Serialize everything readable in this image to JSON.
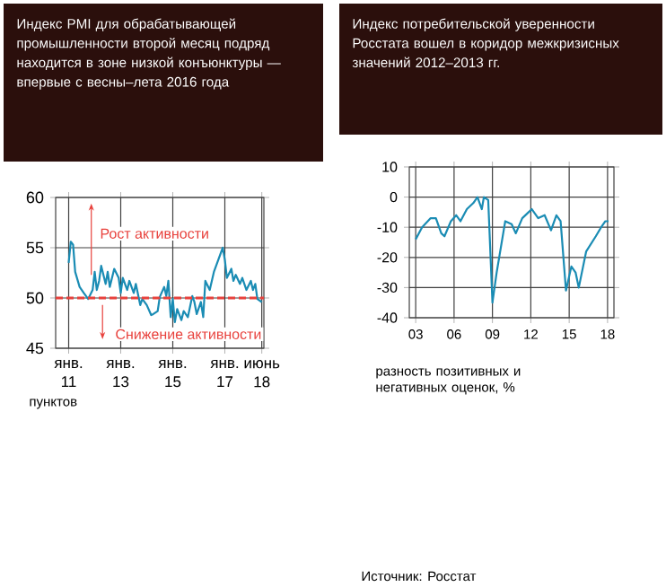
{
  "chart_data": [
    {
      "type": "line",
      "title": "Индекс PMI для обрабатывающей промышленности второй месяц подряд находится в зоне низкой конъюнктуры — впервые с весны–лета 2016 года",
      "ylabel": "пунктов",
      "x": [
        "2011-01",
        "2011-02",
        "2011-03",
        "2011-04",
        "2011-06",
        "2011-08",
        "2011-10",
        "2011-12",
        "2012-01",
        "2012-02",
        "2012-03",
        "2012-04",
        "2012-06",
        "2012-07",
        "2012-08",
        "2012-10",
        "2012-12",
        "2013-01",
        "2013-02",
        "2013-04",
        "2013-05",
        "2013-07",
        "2013-08",
        "2013-10",
        "2013-11",
        "2014-01",
        "2014-03",
        "2014-04",
        "2014-06",
        "2014-07",
        "2014-09",
        "2014-10",
        "2014-11",
        "2014-12",
        "2015-01",
        "2015-02",
        "2015-03",
        "2015-05",
        "2015-06",
        "2015-08",
        "2015-10",
        "2015-11",
        "2015-12",
        "2016-02",
        "2016-03",
        "2016-04",
        "2016-06",
        "2016-07",
        "2016-08",
        "2016-10",
        "2016-12",
        "2017-01",
        "2017-02",
        "2017-04",
        "2017-05",
        "2017-06",
        "2017-08",
        "2017-09",
        "2017-11",
        "2018-01",
        "2018-02",
        "2018-03",
        "2018-04",
        "2018-06"
      ],
      "series": [
        {
          "color": "#1a8cb4",
          "values": [
            53.5,
            55.6,
            55.3,
            52.6,
            51.1,
            50.5,
            49.9,
            50.8,
            52.6,
            50.8,
            51.7,
            53.2,
            51.4,
            52.6,
            51.1,
            52.9,
            52.0,
            50.5,
            52.0,
            50.8,
            51.7,
            50.5,
            51.4,
            49.3,
            49.9,
            49.3,
            48.3,
            48.4,
            48.7,
            50.1,
            51.1,
            50.2,
            51.7,
            48.1,
            49.9,
            47.6,
            48.9,
            47.8,
            48.7,
            48.1,
            50.2,
            49.6,
            48.4,
            49.6,
            48.1,
            51.7,
            50.8,
            51.7,
            52.6,
            53.8,
            55.0,
            53.8,
            52.0,
            52.9,
            51.7,
            52.3,
            51.4,
            52.0,
            50.8,
            51.7,
            50.8,
            51.4,
            49.9,
            49.6
          ]
        }
      ],
      "xlim": [
        "2010-07",
        "2018-07"
      ],
      "ylim": [
        45,
        60
      ],
      "xticks": [
        {
          "value": "2011-01",
          "label": "янв. 11"
        },
        {
          "value": "2013-01",
          "label": "янв. 13"
        },
        {
          "value": "2015-01",
          "label": "янв. 15"
        },
        {
          "value": "2017-01",
          "label": "янв. 17"
        },
        {
          "value": "2018-06",
          "label": "июнь 18"
        }
      ],
      "yticks": [
        45,
        50,
        55,
        60
      ],
      "grid": true,
      "ref_lines": [
        {
          "axis": "y",
          "value": 50,
          "color": "#e8413c",
          "line_style": "dashed"
        }
      ],
      "annotations": [
        "Рост активности",
        "Снижение активности"
      ]
    },
    {
      "type": "line",
      "title": "Индекс потребительской уверенности Росстата вошел в коридор межкризисных значений 2012–2013 гг.",
      "ylabel": "разность позитивных и негативных оценок, %",
      "x": [
        "2003-01",
        "2003-07",
        "2004-03",
        "2004-08",
        "2005-01",
        "2005-04",
        "2005-10",
        "2006-03",
        "2006-07",
        "2007-01",
        "2007-07",
        "2007-11",
        "2008-03",
        "2008-05",
        "2008-09",
        "2009-01",
        "2009-05",
        "2010-01",
        "2010-07",
        "2010-11",
        "2011-05",
        "2011-11",
        "2012-02",
        "2012-08",
        "2013-02",
        "2013-08",
        "2014-01",
        "2014-05",
        "2014-10",
        "2015-03",
        "2015-07",
        "2015-10",
        "2016-05",
        "2017-02",
        "2017-07",
        "2017-11",
        "2018-02"
      ],
      "series": [
        {
          "color": "#1a8cb4",
          "values": [
            -14,
            -10,
            -7,
            -7,
            -12,
            -13,
            -8,
            -6,
            -8,
            -4,
            -2,
            0,
            -4,
            0,
            -1,
            -35,
            -25,
            -8,
            -9,
            -12,
            -7,
            -5,
            -4,
            -7,
            -6,
            -11,
            -6,
            -8,
            -31,
            -23,
            -25,
            -30,
            -18,
            -13,
            -10,
            -8,
            -8
          ]
        }
      ],
      "xlim": [
        "2002-07",
        "2018-07"
      ],
      "ylim": [
        -40,
        10
      ],
      "xticks": [
        {
          "value": "2003-01",
          "label": "03"
        },
        {
          "value": "2006-01",
          "label": "06"
        },
        {
          "value": "2009-01",
          "label": "09"
        },
        {
          "value": "2012-01",
          "label": "12"
        },
        {
          "value": "2015-01",
          "label": "15"
        },
        {
          "value": "2018-01",
          "label": "18"
        }
      ],
      "yticks": [
        -40,
        -30,
        -20,
        -10,
        0,
        10
      ],
      "grid": true,
      "annotations": [
        "Источник: Росстат"
      ]
    }
  ]
}
